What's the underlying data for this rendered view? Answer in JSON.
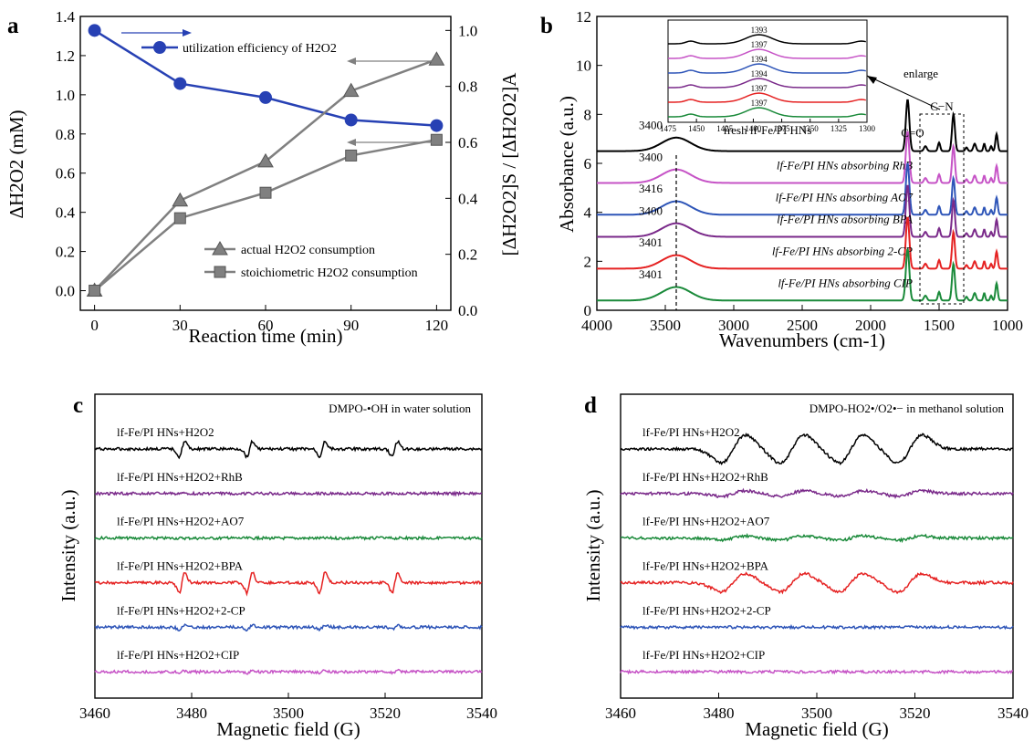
{
  "chart_data": [
    {
      "panel": "a",
      "type": "line",
      "xlabel": "Reaction time (min)",
      "ylabel": "ΔH2O2 (mM)",
      "ylabel_right": "[ΔH2O2]S / [ΔH2O2]A",
      "xlim": [
        -5,
        125
      ],
      "ylim": [
        -0.1,
        1.4
      ],
      "ylim_right": [
        0.0,
        1.05
      ],
      "xticks": [
        "0",
        "30",
        "60",
        "90",
        "120"
      ],
      "yticks": [
        "0.0",
        "0.2",
        "0.4",
        "0.6",
        "0.8",
        "1.0",
        "1.2",
        "1.4"
      ],
      "yticks_right": [
        "0.0",
        "0.2",
        "0.4",
        "0.6",
        "0.8",
        "1.0"
      ],
      "x": [
        0,
        30,
        60,
        90,
        120
      ],
      "series": [
        {
          "name": "utilization efficiency of H2O2",
          "axis": "right",
          "marker": "circle",
          "color": "#2741b4",
          "values": [
            1.0,
            0.81,
            0.76,
            0.68,
            0.66
          ]
        },
        {
          "name": "actual H2O2 consumption",
          "axis": "left",
          "marker": "triangle",
          "color": "#808080",
          "values": [
            0.0,
            0.46,
            0.66,
            1.02,
            1.18
          ]
        },
        {
          "name": "stoichiometric H2O2 consumption",
          "axis": "left",
          "marker": "square",
          "color": "#808080",
          "values": [
            0.0,
            0.37,
            0.5,
            0.69,
            0.77
          ]
        }
      ]
    },
    {
      "panel": "b",
      "type": "line",
      "xlabel": "Wavenumbers (cm-1)",
      "ylabel": "Absorbance (a.u.)",
      "xlim": [
        4000,
        1000
      ],
      "ylim": [
        0,
        12
      ],
      "xticks": [
        "4000",
        "3500",
        "3000",
        "2500",
        "2000",
        "1500",
        "1000"
      ],
      "yticks": [
        "0",
        "2",
        "4",
        "6",
        "8",
        "10",
        "12"
      ],
      "annotations": [
        "C=O",
        "C−N",
        "enlarge"
      ],
      "series": [
        {
          "name": "fresh lf-Fe/PI HNs",
          "color": "#000000",
          "baseline": 6.5,
          "peak_label": "3400",
          "inset_peak": "1393"
        },
        {
          "name": "lf-Fe/PI HNs absorbing RhB",
          "color": "#c653c6",
          "baseline": 5.2,
          "peak_label": "3400",
          "inset_peak": "1397"
        },
        {
          "name": "lf-Fe/PI HNs absorbing AO7",
          "color": "#2e55b8",
          "baseline": 3.9,
          "peak_label": "3416",
          "inset_peak": "1394"
        },
        {
          "name": "lf-Fe/PI HNs absorbing BPA",
          "color": "#7a2a8a",
          "baseline": 3.0,
          "peak_label": "3400",
          "inset_peak": "1394"
        },
        {
          "name": "lf-Fe/PI HNs absorbing 2-CP",
          "color": "#e52222",
          "baseline": 1.7,
          "peak_label": "3401",
          "inset_peak": "1397"
        },
        {
          "name": "lf-Fe/PI HNs absorbing CIP",
          "color": "#1a8a3a",
          "baseline": 0.4,
          "peak_label": "3401",
          "inset_peak": "1397"
        }
      ],
      "inset": {
        "xticks": [
          "1475",
          "1450",
          "1425",
          "1400",
          "1375",
          "1350",
          "1325",
          "1300"
        ],
        "xlabel": "fresh lf-Fe/PI HNs"
      }
    },
    {
      "panel": "c",
      "type": "line",
      "title": "DMPO-•OH in water solution",
      "xlabel": "Magnetic field (G)",
      "ylabel": "Intensity (a.u.)",
      "xlim": [
        3460,
        3540
      ],
      "xticks": [
        "3460",
        "3480",
        "3500",
        "3520",
        "3540"
      ],
      "peaks_G": [
        3478,
        3492,
        3507,
        3522
      ],
      "series": [
        {
          "name": "lf-Fe/PI HNs+H2O2",
          "color": "#000000",
          "amp": 1.0
        },
        {
          "name": "lf-Fe/PI HNs+H2O2+RhB",
          "color": "#7a2a8a",
          "amp": 0.0
        },
        {
          "name": "lf-Fe/PI HNs+H2O2+AO7",
          "color": "#1a8a3a",
          "amp": 0.0
        },
        {
          "name": "lf-Fe/PI HNs+H2O2+BPA",
          "color": "#e52222",
          "amp": 1.3
        },
        {
          "name": "lf-Fe/PI HNs+H2O2+2-CP",
          "color": "#2e55b8",
          "amp": 0.3
        },
        {
          "name": "lf-Fe/PI HNs+H2O2+CIP",
          "color": "#c653c6",
          "amp": 0.15
        }
      ]
    },
    {
      "panel": "d",
      "type": "line",
      "title": "DMPO-HO2•/O2•− in methanol solution",
      "xlabel": "Magnetic field (G)",
      "ylabel": "Intensity (a.u.)",
      "xlim": [
        3460,
        3540
      ],
      "xticks": [
        "3460",
        "3480",
        "3500",
        "3520",
        "3540"
      ],
      "peaks_G": [
        3483,
        3495,
        3507,
        3519
      ],
      "series": [
        {
          "name": "lf-Fe/PI HNs+H2O2",
          "color": "#000000",
          "amp": 1.0
        },
        {
          "name": "lf-Fe/PI HNs+H2O2+RhB",
          "color": "#7a2a8a",
          "amp": 0.2
        },
        {
          "name": "lf-Fe/PI HNs+H2O2+AO7",
          "color": "#1a8a3a",
          "amp": 0.15
        },
        {
          "name": "lf-Fe/PI HNs+H2O2+BPA",
          "color": "#e52222",
          "amp": 0.65
        },
        {
          "name": "lf-Fe/PI HNs+H2O2+2-CP",
          "color": "#2e55b8",
          "amp": 0.0
        },
        {
          "name": "lf-Fe/PI HNs+H2O2+CIP",
          "color": "#c653c6",
          "amp": 0.0
        }
      ]
    }
  ]
}
